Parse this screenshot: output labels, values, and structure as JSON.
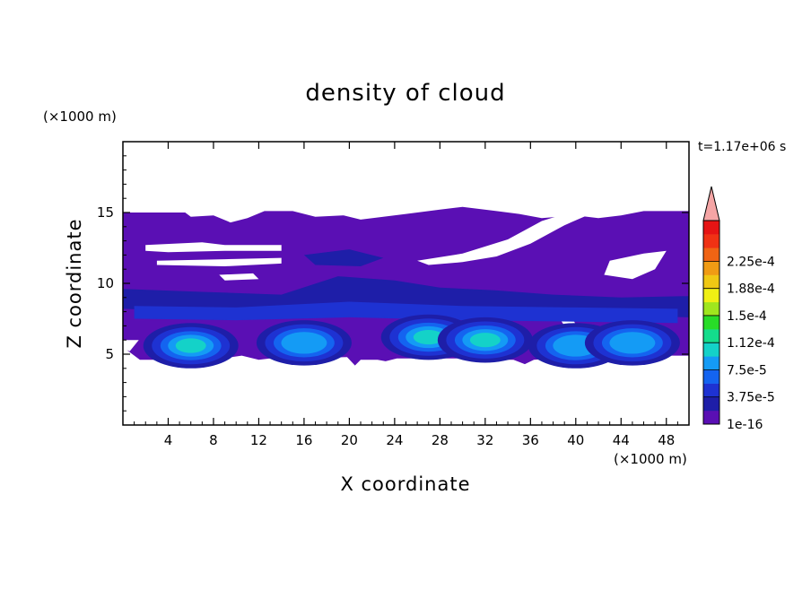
{
  "chart_data": {
    "type": "heatmap",
    "title": "density of cloud",
    "xlabel": "X coordinate",
    "ylabel": "Z coordinate",
    "x_unit": "(×1000 m)",
    "y_unit": "(×1000 m)",
    "time_label": "t=1.17e+06 s",
    "xlim": [
      0,
      50
    ],
    "ylim": [
      0,
      20
    ],
    "x_ticks": [
      4,
      8,
      12,
      16,
      20,
      24,
      28,
      32,
      36,
      40,
      44,
      48
    ],
    "y_ticks": [
      5,
      10,
      15
    ],
    "colorbar": {
      "label_values": [
        "1e-16",
        "3.75e-5",
        "7.5e-5",
        "1.12e-4",
        "1.5e-4",
        "1.88e-4",
        "2.25e-4"
      ],
      "colors": [
        "#5a0fb4",
        "#1e1ea8",
        "#1e32d2",
        "#1464f0",
        "#149bf5",
        "#14d2c8",
        "#14dc8c",
        "#28dc28",
        "#a0e61e",
        "#f0f014",
        "#f0c814",
        "#f09b14",
        "#f06414",
        "#f03214",
        "#e61414"
      ],
      "over_color": "#f5a5a5"
    },
    "cloud_layer": {
      "base_z": 5,
      "top_z": 15,
      "background_level_color": "#5a0fb4",
      "cores": [
        {
          "x": 6,
          "z": 5.6,
          "peak": "1.12e-4"
        },
        {
          "x": 16,
          "z": 5.8,
          "peak": "9e-5"
        },
        {
          "x": 27,
          "z": 6.2,
          "peak": "1.12e-4"
        },
        {
          "x": 32,
          "z": 6.0,
          "peak": "1.12e-4"
        },
        {
          "x": 40,
          "z": 5.6,
          "peak": "7.5e-5"
        },
        {
          "x": 45,
          "z": 5.8,
          "peak": "7.5e-5"
        }
      ]
    }
  }
}
